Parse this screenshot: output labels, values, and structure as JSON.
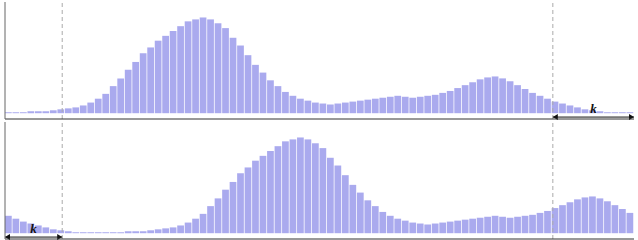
{
  "chart_data": [
    {
      "type": "bar",
      "values": [
        0.01,
        0.01,
        0.01,
        0.02,
        0.02,
        0.02,
        0.03,
        0.04,
        0.05,
        0.06,
        0.08,
        0.11,
        0.15,
        0.2,
        0.28,
        0.36,
        0.45,
        0.53,
        0.62,
        0.68,
        0.75,
        0.8,
        0.85,
        0.9,
        0.95,
        0.97,
        0.99,
        0.97,
        0.93,
        0.88,
        0.78,
        0.7,
        0.6,
        0.5,
        0.42,
        0.34,
        0.28,
        0.22,
        0.18,
        0.15,
        0.13,
        0.11,
        0.1,
        0.09,
        0.1,
        0.11,
        0.12,
        0.13,
        0.14,
        0.15,
        0.16,
        0.17,
        0.18,
        0.17,
        0.16,
        0.17,
        0.18,
        0.19,
        0.21,
        0.23,
        0.26,
        0.29,
        0.32,
        0.35,
        0.37,
        0.38,
        0.36,
        0.33,
        0.29,
        0.25,
        0.21,
        0.18,
        0.15,
        0.12,
        0.1,
        0.08,
        0.06,
        0.04,
        0.03,
        0.02,
        0.01,
        0.01,
        0.01,
        0.01
      ],
      "color": "#aaaaee",
      "ylim": [
        -0.06,
        1.15
      ],
      "tick_labels": false,
      "annotations": [
        "k"
      ]
    },
    {
      "type": "bar",
      "values": [
        0.18,
        0.15,
        0.12,
        0.1,
        0.08,
        0.06,
        0.04,
        0.03,
        0.02,
        0.01,
        0.01,
        0.01,
        0.01,
        0.01,
        0.01,
        0.01,
        0.02,
        0.02,
        0.02,
        0.03,
        0.04,
        0.05,
        0.06,
        0.08,
        0.11,
        0.15,
        0.2,
        0.28,
        0.36,
        0.45,
        0.53,
        0.62,
        0.68,
        0.75,
        0.8,
        0.85,
        0.9,
        0.95,
        0.97,
        0.99,
        0.97,
        0.93,
        0.88,
        0.78,
        0.7,
        0.6,
        0.5,
        0.42,
        0.34,
        0.28,
        0.22,
        0.18,
        0.15,
        0.13,
        0.11,
        0.1,
        0.09,
        0.1,
        0.11,
        0.12,
        0.13,
        0.14,
        0.15,
        0.16,
        0.17,
        0.18,
        0.17,
        0.16,
        0.17,
        0.18,
        0.19,
        0.21,
        0.23,
        0.26,
        0.29,
        0.32,
        0.35,
        0.37,
        0.38,
        0.36,
        0.33,
        0.29,
        0.25,
        0.21
      ],
      "color": "#aaaaee",
      "ylim": [
        -0.06,
        1.15
      ],
      "tick_labels": false,
      "annotations": [
        "k"
      ]
    }
  ]
}
